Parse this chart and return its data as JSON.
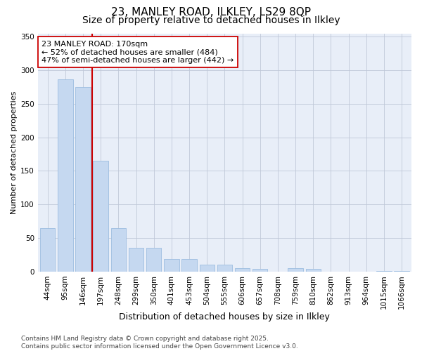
{
  "title1": "23, MANLEY ROAD, ILKLEY, LS29 8QP",
  "title2": "Size of property relative to detached houses in Ilkley",
  "xlabel": "Distribution of detached houses by size in Ilkley",
  "ylabel": "Number of detached properties",
  "categories": [
    "44sqm",
    "95sqm",
    "146sqm",
    "197sqm",
    "248sqm",
    "299sqm",
    "350sqm",
    "401sqm",
    "453sqm",
    "504sqm",
    "555sqm",
    "606sqm",
    "657sqm",
    "708sqm",
    "759sqm",
    "810sqm",
    "862sqm",
    "913sqm",
    "964sqm",
    "1015sqm",
    "1066sqm"
  ],
  "values": [
    65,
    287,
    275,
    165,
    65,
    35,
    35,
    19,
    19,
    10,
    10,
    5,
    4,
    0,
    5,
    4,
    0,
    0,
    0,
    1,
    1
  ],
  "bar_color": "#c5d8f0",
  "bar_edge_color": "#9dbde0",
  "vline_x": 2.5,
  "vline_color": "#cc0000",
  "annotation_text": "23 MANLEY ROAD: 170sqm\n← 52% of detached houses are smaller (484)\n47% of semi-detached houses are larger (442) →",
  "annotation_box_facecolor": "#ffffff",
  "annotation_box_edgecolor": "#cc0000",
  "ylim": [
    0,
    355
  ],
  "yticks": [
    0,
    50,
    100,
    150,
    200,
    250,
    300,
    350
  ],
  "background_color": "#e8eef8",
  "grid_color": "#c0c8d8",
  "footer_text": "Contains HM Land Registry data © Crown copyright and database right 2025.\nContains public sector information licensed under the Open Government Licence v3.0.",
  "title1_fontsize": 11,
  "title2_fontsize": 10,
  "xlabel_fontsize": 9,
  "ylabel_fontsize": 8,
  "tick_fontsize": 7.5,
  "annotation_fontsize": 8,
  "footer_fontsize": 6.5
}
